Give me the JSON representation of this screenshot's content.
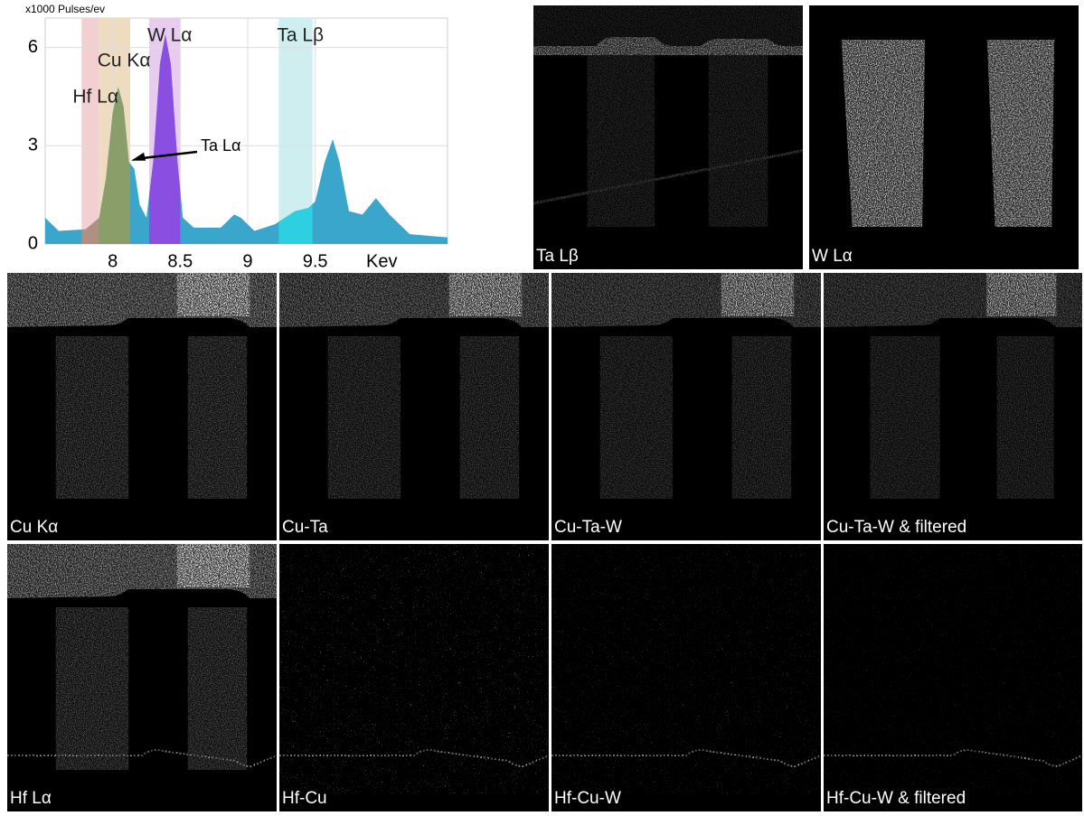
{
  "chart_data": {
    "type": "area",
    "ylabel": "x1000 Pulses/ev",
    "xlabel": "Kev",
    "xlim": [
      7.5,
      10.48
    ],
    "ylim": [
      0,
      6.9
    ],
    "xticks": [
      8,
      8.5,
      9,
      9.5
    ],
    "yticks": [
      0,
      3,
      6
    ],
    "grid": true,
    "x": [
      7.5,
      7.6,
      7.8,
      7.9,
      7.95,
      8.0,
      8.04,
      8.08,
      8.12,
      8.16,
      8.2,
      8.25,
      8.3,
      8.35,
      8.39,
      8.43,
      8.48,
      8.52,
      8.6,
      8.8,
      8.9,
      8.95,
      9.05,
      9.2,
      9.35,
      9.45,
      9.5,
      9.57,
      9.63,
      9.68,
      9.75,
      9.85,
      9.95,
      10.05,
      10.2,
      10.48
    ],
    "series": [
      {
        "color": "#3aa6cc",
        "values": [
          0.8,
          0.4,
          0.45,
          0.8,
          2,
          4,
          4.8,
          4.2,
          2.5,
          2.3,
          1.2,
          0.8,
          2.5,
          5.5,
          6.4,
          5.5,
          2.5,
          0.8,
          0.5,
          0.5,
          0.9,
          0.8,
          0.4,
          0.6,
          1.0,
          1.1,
          1.3,
          2.5,
          3.2,
          2.5,
          1.0,
          0.9,
          1.4,
          0.9,
          0.3,
          0.2
        ]
      }
    ],
    "bands": [
      {
        "name": "Hf Lα",
        "range": [
          7.77,
          7.9
        ],
        "color": "#f2cfd0",
        "fill": "#b09080"
      },
      {
        "name": "Cu Kα",
        "range": [
          7.9,
          8.13
        ],
        "color": "#efdcc0",
        "fill": "#8a9e6a"
      },
      {
        "name": "W Lα",
        "range": [
          8.27,
          8.5
        ],
        "color": "#e8ccef",
        "fill": "#8a4fe0"
      },
      {
        "name": "Ta Lβ",
        "range": [
          9.23,
          9.48
        ],
        "color": "#cfeeef",
        "fill": "#2cd0e0"
      }
    ],
    "annotation": {
      "text": "Ta Lα",
      "x": 8.15,
      "y": 2.6
    }
  },
  "panels": [
    {
      "label": "Ta Lβ"
    },
    {
      "label": "W Lα"
    },
    {
      "label": "Cu Kα"
    },
    {
      "label": "Cu-Ta"
    },
    {
      "label": "Cu-Ta-W"
    },
    {
      "label": "Cu-Ta-W & filtered"
    },
    {
      "label": "Hf Lα"
    },
    {
      "label": "Hf-Cu"
    },
    {
      "label": "Hf-Cu-W"
    },
    {
      "label": "Hf-Cu-W & filtered"
    }
  ]
}
